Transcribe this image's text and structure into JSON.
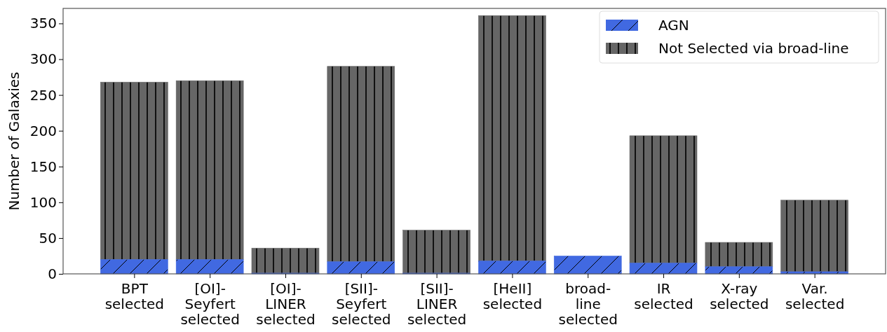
{
  "chart_data": {
    "type": "bar",
    "stacked": true,
    "ylabel": "Number of Galaxies",
    "categories": [
      "BPT\nselected",
      "[OI]-\nSeyfert\nselected",
      "[OI]-\nLINER\nselected",
      "[SII]-\nSeyfert\nselected",
      "[SII]-\nLINER\nselected",
      "[HeII]\nselected",
      "broad-\nline\nselected",
      "IR\nselected",
      "X-ray\nselected",
      "Var.\nselected"
    ],
    "series": [
      {
        "name": "AGN",
        "color": "#4169e1",
        "values": [
          20,
          20,
          1,
          17,
          1,
          18,
          25,
          15,
          10,
          3
        ]
      },
      {
        "name": "Not Selected via broad-line",
        "color": "#666666",
        "values": [
          248,
          250,
          35,
          273,
          60,
          343,
          0,
          178,
          34,
          100
        ]
      }
    ],
    "ylim": [
      0,
      371
    ],
    "yticks": [
      0,
      50,
      100,
      150,
      200,
      250,
      300,
      350
    ],
    "legend": "top right"
  }
}
